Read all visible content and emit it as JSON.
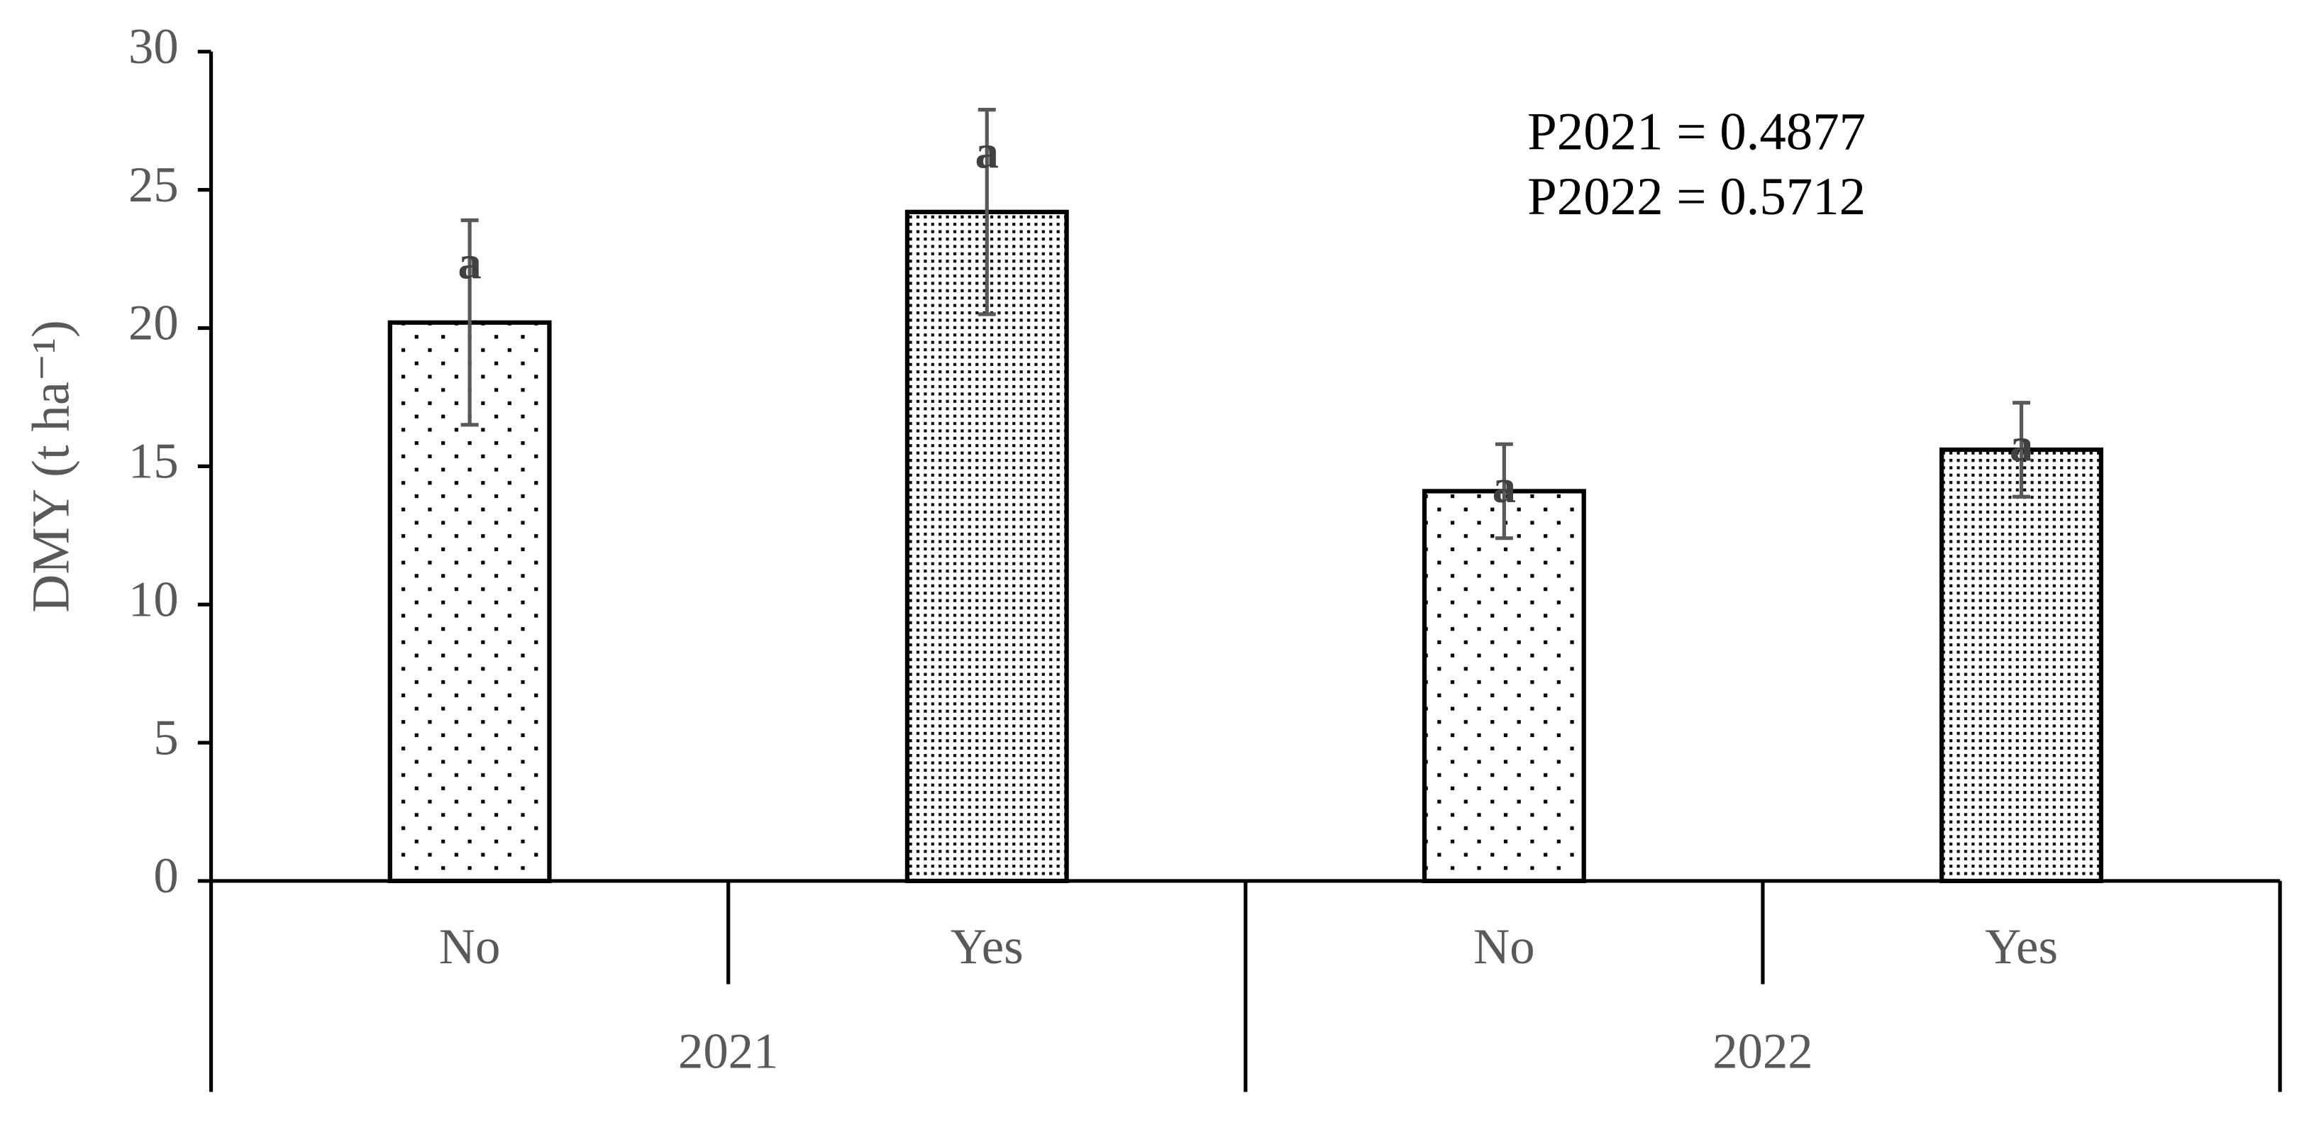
{
  "chart_data": {
    "type": "bar",
    "y_label": "DMY (t ha⁻¹)",
    "annotations": [
      "P2021 = 0.4877",
      "P2022 = 0.5712"
    ],
    "categories": [
      "No",
      "Yes",
      "No",
      "Yes"
    ],
    "groups": [
      "2021",
      "2022"
    ],
    "values": [
      20.2,
      24.2,
      14.1,
      15.6
    ],
    "errors": [
      3.7,
      3.7,
      1.7,
      1.7
    ],
    "significance": [
      "a",
      "a",
      "a",
      "a"
    ],
    "patterns": [
      "sparse-dots",
      "dense-dots",
      "sparse-dots",
      "dense-dots"
    ],
    "ylim": [
      0,
      30
    ],
    "yticks": [
      0,
      5,
      10,
      15,
      20,
      25,
      30
    ]
  }
}
